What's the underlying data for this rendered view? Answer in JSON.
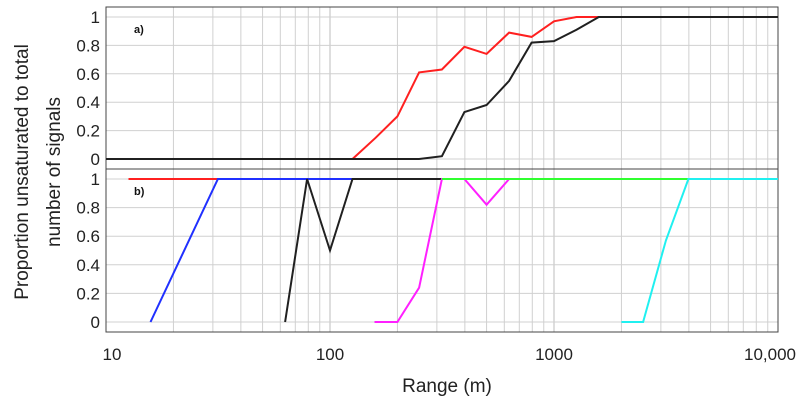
{
  "chart_data": [
    {
      "type": "line",
      "panel_label": "a)",
      "x_scale": "log",
      "xlim": [
        10,
        10000
      ],
      "ylim": [
        0,
        1
      ],
      "yticks": [
        "0",
        "0.2",
        "0.4",
        "0.6",
        "0.8",
        "1"
      ],
      "grid": true,
      "series": [
        {
          "color": "#ff2020",
          "points": [
            [
              126,
              0
            ],
            [
              160,
              0.15
            ],
            [
              200,
              0.3
            ],
            [
              250,
              0.61
            ],
            [
              316,
              0.63
            ],
            [
              398,
              0.79
            ],
            [
              500,
              0.74
            ],
            [
              630,
              0.89
            ],
            [
              794,
              0.86
            ],
            [
              1000,
              0.97
            ],
            [
              1260,
              1.0
            ],
            [
              1585,
              1.0
            ],
            [
              10000,
              1.0
            ]
          ]
        },
        {
          "color": "#202020",
          "points": [
            [
              10,
              0
            ],
            [
              250,
              0
            ],
            [
              316,
              0.02
            ],
            [
              398,
              0.33
            ],
            [
              500,
              0.38
            ],
            [
              630,
              0.55
            ],
            [
              794,
              0.82
            ],
            [
              1000,
              0.83
            ],
            [
              1260,
              0.91
            ],
            [
              1585,
              1.0
            ],
            [
              10000,
              1.0
            ]
          ]
        }
      ]
    },
    {
      "type": "line",
      "panel_label": "b)",
      "x_scale": "log",
      "xlim": [
        10,
        10000
      ],
      "ylim": [
        0,
        1
      ],
      "yticks": [
        "0",
        "0.2",
        "0.4",
        "0.6",
        "0.8",
        "1"
      ],
      "grid": true,
      "series": [
        {
          "color": "#ff2020",
          "points": [
            [
              12.6,
              1.0
            ],
            [
              32,
              1.0
            ]
          ]
        },
        {
          "color": "#2030ff",
          "points": [
            [
              15.8,
              0
            ],
            [
              31.6,
              1.0
            ],
            [
              126,
              1.0
            ]
          ]
        },
        {
          "color": "#202020",
          "points": [
            [
              63,
              0
            ],
            [
              79,
              1.0
            ],
            [
              100,
              0.5
            ],
            [
              126,
              1.0
            ],
            [
              316,
              1.0
            ]
          ]
        },
        {
          "color": "#ff20ff",
          "points": [
            [
              158,
              0
            ],
            [
              200,
              0
            ],
            [
              250,
              0.24
            ],
            [
              316,
              1.0
            ],
            [
              398,
              1.0
            ],
            [
              500,
              0.82
            ],
            [
              630,
              1.0
            ]
          ]
        },
        {
          "color": "#30ff30",
          "points": [
            [
              316,
              1.0
            ],
            [
              3980,
              1.0
            ]
          ]
        },
        {
          "color": "#20f0f0",
          "points": [
            [
              2000,
              0
            ],
            [
              2500,
              0
            ],
            [
              3160,
              0.57
            ],
            [
              3980,
              1.0
            ],
            [
              10000,
              1.0
            ]
          ]
        }
      ]
    }
  ],
  "x_axis": {
    "label": "Range (m)",
    "ticks": [
      {
        "value": 10,
        "label": "10"
      },
      {
        "value": 100,
        "label": "100"
      },
      {
        "value": 1000,
        "label": "1000"
      },
      {
        "value": 10000,
        "label": "10,000"
      }
    ]
  },
  "y_axis": {
    "label_line1": "Proportion unsaturated to total",
    "label_line2": "number of signals"
  },
  "colors": {
    "grid": "#d0d0d0",
    "frame": "#444444"
  }
}
